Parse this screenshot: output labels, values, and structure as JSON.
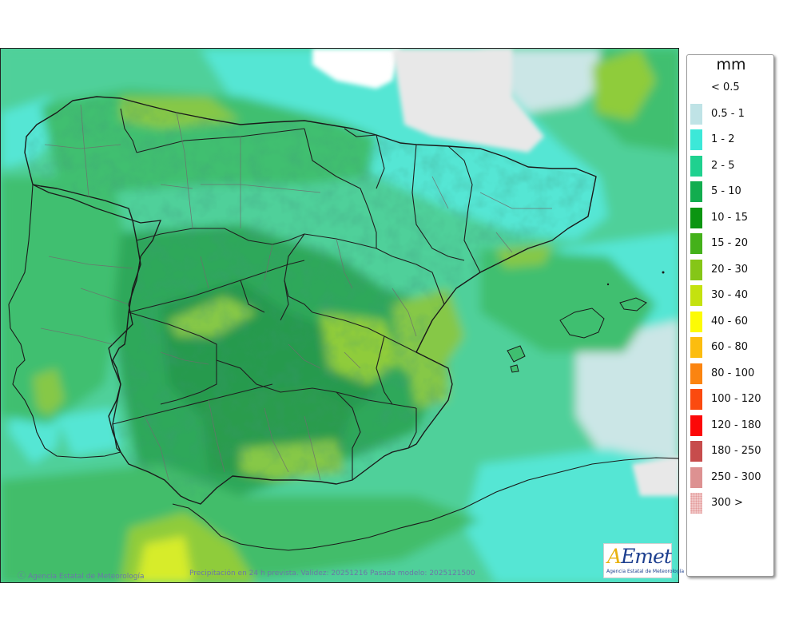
{
  "legend": {
    "title": "mm",
    "items": [
      {
        "label": "< 0.5",
        "color": "#ffffff"
      },
      {
        "label": "0.5 - 1",
        "color": "#bfe3e6"
      },
      {
        "label": "1 - 2",
        "color": "#3ce8d8"
      },
      {
        "label": "2 - 5",
        "color": "#1fd18f"
      },
      {
        "label": "5 - 10",
        "color": "#12ad4f"
      },
      {
        "label": "10 - 15",
        "color": "#0b9511"
      },
      {
        "label": "15 - 20",
        "color": "#44b11a"
      },
      {
        "label": "20 - 30",
        "color": "#85c617"
      },
      {
        "label": "30 - 40",
        "color": "#c4e20f"
      },
      {
        "label": "40 - 60",
        "color": "#fdfb05"
      },
      {
        "label": "60 - 80",
        "color": "#fcbd0f"
      },
      {
        "label": "80 - 100",
        "color": "#fb8410"
      },
      {
        "label": "100 - 120",
        "color": "#fb4a0f"
      },
      {
        "label": "120 - 180",
        "color": "#fc0808"
      },
      {
        "label": "180 - 250",
        "color": "#c74c4c"
      },
      {
        "label": "250 - 300",
        "color": "#dd9191"
      },
      {
        "label": "300 >",
        "color": "#f1c7c7"
      }
    ]
  },
  "footer": {
    "agency": "Agencia Estatal de Meteorología",
    "caption": "Precipitación en 24 h prevista. Validez: 20251216 Pasada modelo: 2025121500"
  },
  "logo": {
    "word_a": "A",
    "word_rest": "Emet",
    "subtitle": "Agencia Estatal de Meteorología"
  },
  "map": {
    "colors": {
      "sea_base": "#4fd09a",
      "light_cyan": "#cbe6e6",
      "cyan": "#55e6d4",
      "green_land": "#38b560",
      "mid_green": "#41bd66",
      "lime": "#8fcc3a",
      "yellow": "#d7ec2c",
      "france_dry": "#e8e8e8",
      "border": "#1a1a1a",
      "province_border": "#6e6e6e"
    }
  }
}
